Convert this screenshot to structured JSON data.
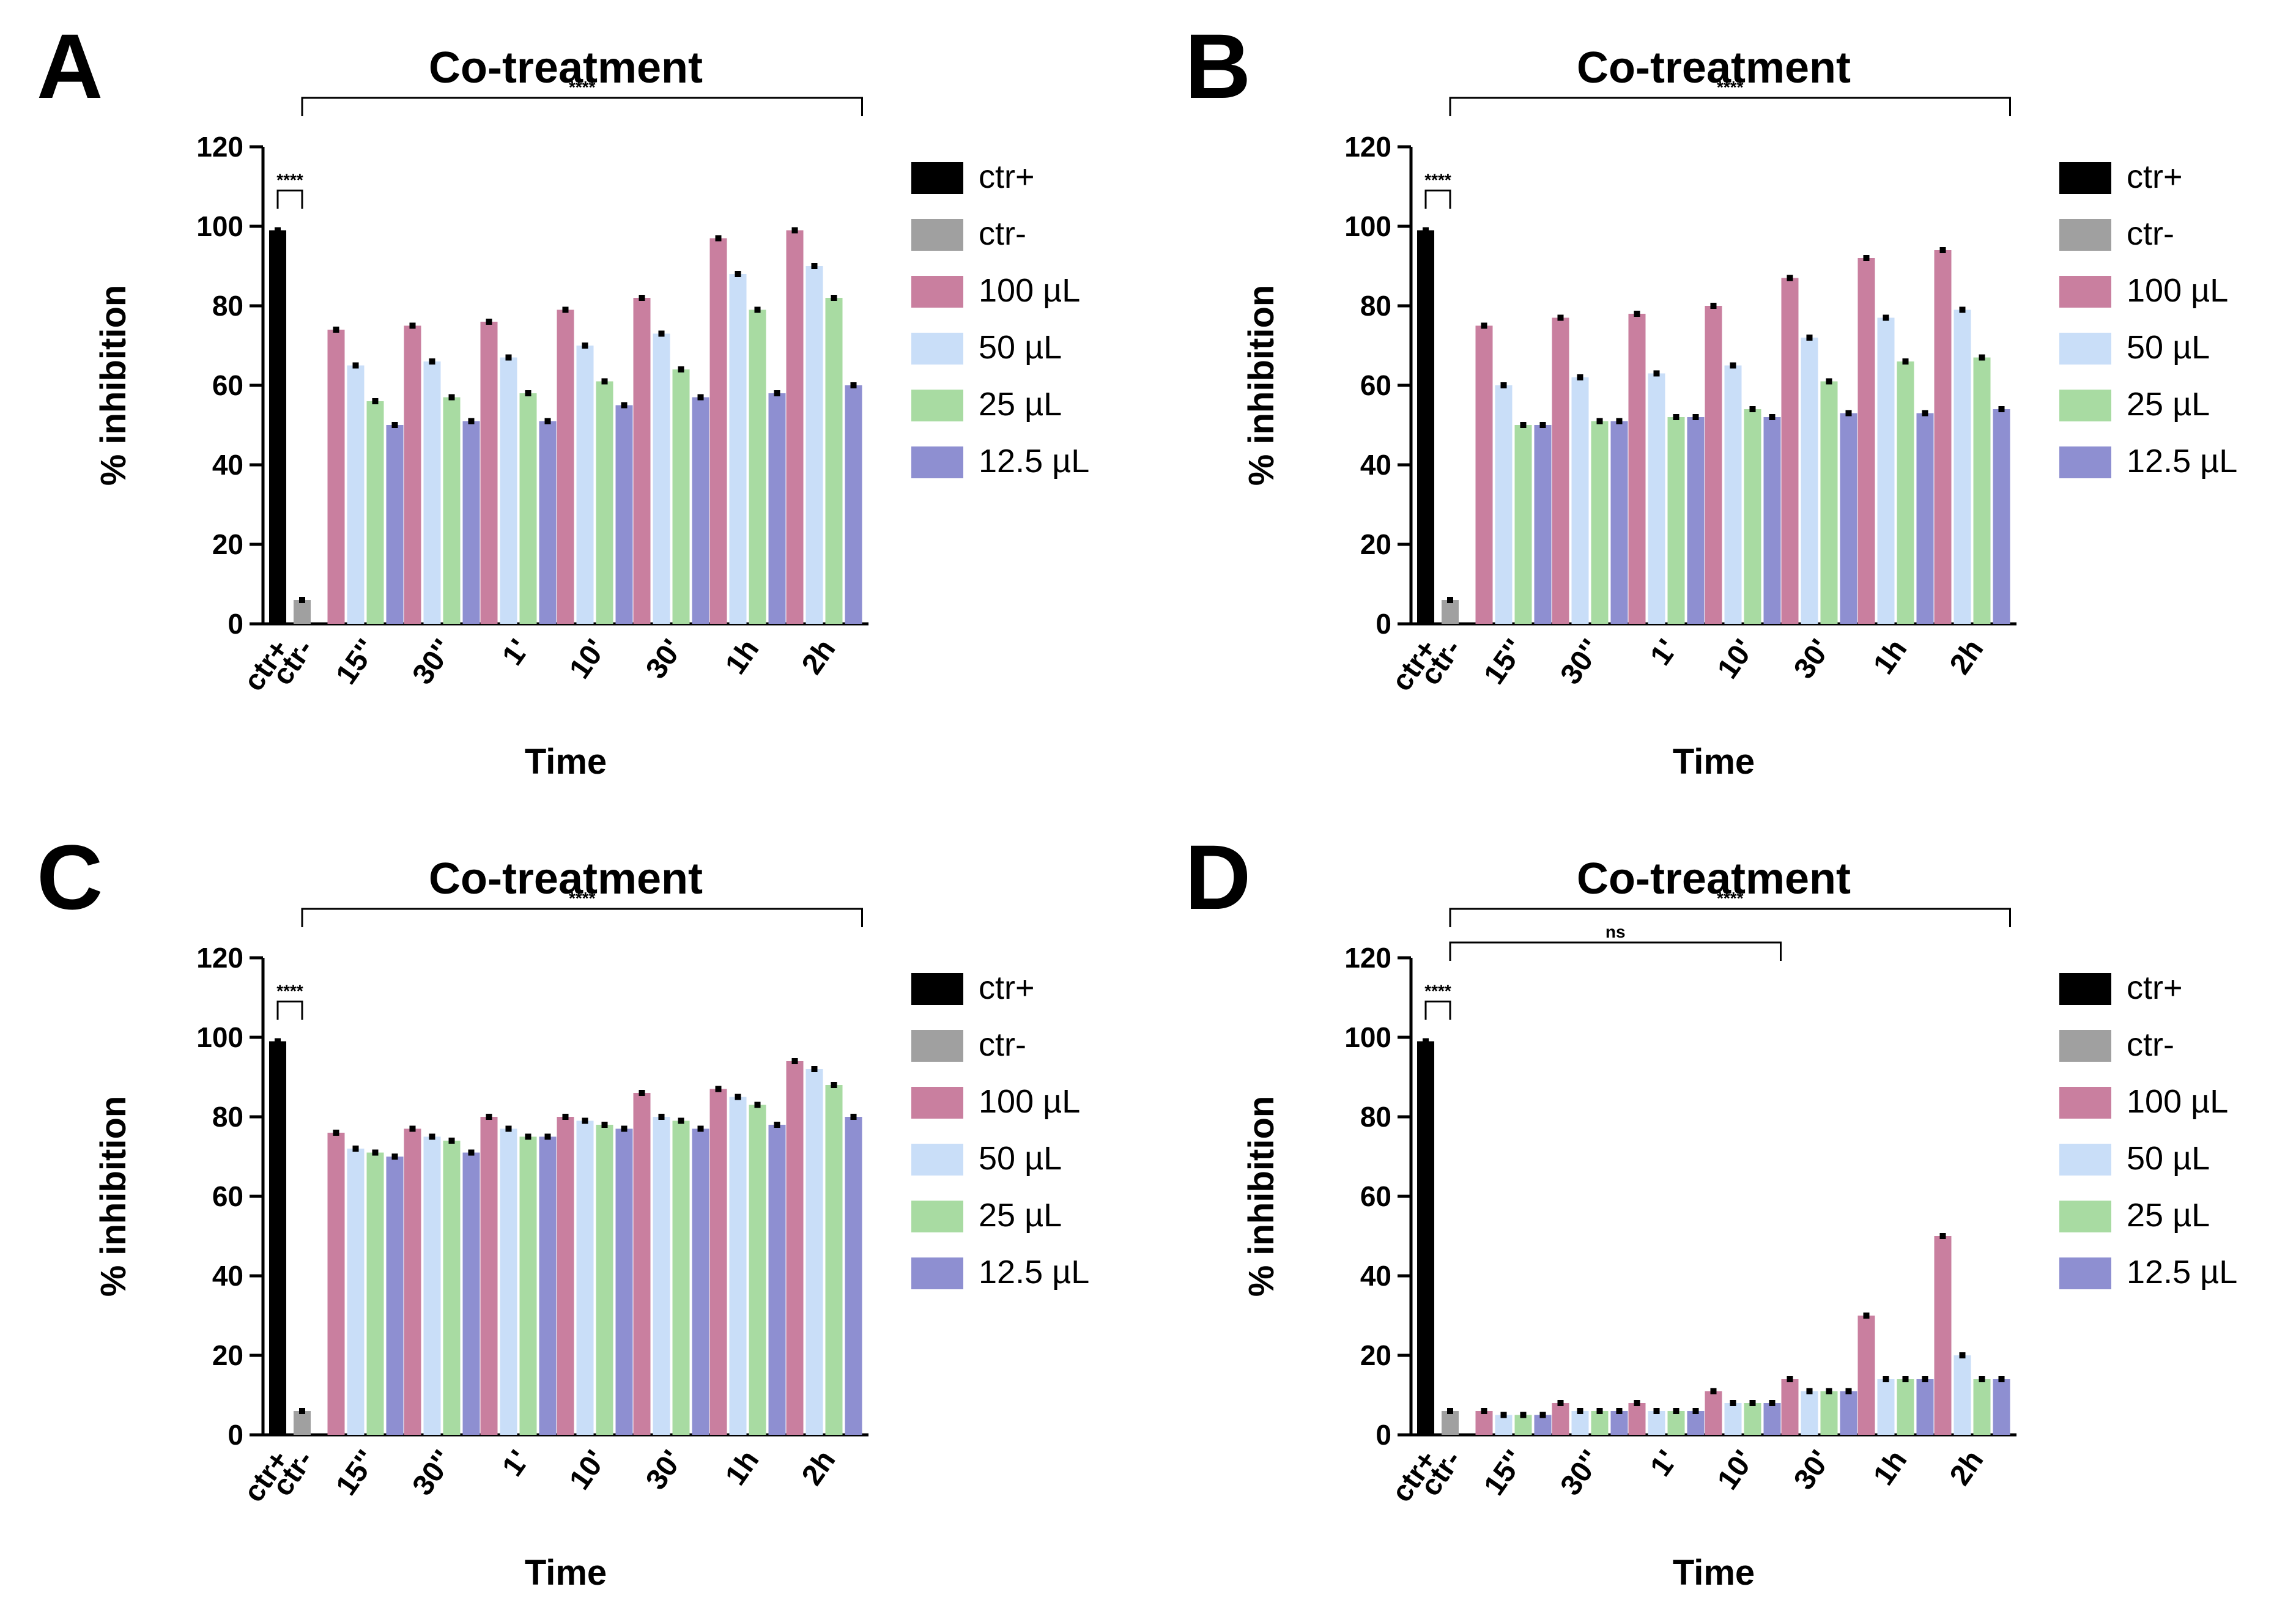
{
  "legend_colors": {
    "ctr+": "#000000",
    "ctr-": "#a0a0a0",
    "100 µL": "#c97f9f",
    "50 µL": "#c9def8",
    "25 µL": "#a8dba2",
    "12.5 µL": "#8e8fd1"
  },
  "chart_data": [
    {
      "panel_letter": "A",
      "type": "bar",
      "title": "Co-treatment",
      "xlabel": "Time",
      "ylabel": "% inhibition",
      "ylim": [
        0,
        120
      ],
      "yticks": [
        "0",
        "20",
        "40",
        "60",
        "80",
        "100",
        "120"
      ],
      "controls": [
        {
          "name": "ctr+",
          "value": 99
        },
        {
          "name": "ctr-",
          "value": 6
        }
      ],
      "categories": [
        "15''",
        "30''",
        "1'",
        "10'",
        "30'",
        "1h",
        "2h"
      ],
      "series": [
        {
          "name": "100 µL",
          "values": [
            74,
            75,
            76,
            79,
            82,
            97,
            99
          ]
        },
        {
          "name": "50 µL",
          "values": [
            65,
            66,
            67,
            70,
            73,
            88,
            90
          ]
        },
        {
          "name": "25 µL",
          "values": [
            56,
            57,
            58,
            61,
            64,
            79,
            82
          ]
        },
        {
          "name": "12.5 µL",
          "values": [
            50,
            51,
            51,
            55,
            57,
            58,
            60
          ]
        }
      ],
      "brackets": [
        {
          "label": "****",
          "from": "ctr+",
          "to": "ctr-"
        },
        {
          "label": "****",
          "from": "ctr-",
          "to": "2h"
        }
      ]
    },
    {
      "panel_letter": "B",
      "type": "bar",
      "title": "Co-treatment",
      "xlabel": "Time",
      "ylabel": "% inhibition",
      "ylim": [
        0,
        120
      ],
      "yticks": [
        "0",
        "20",
        "40",
        "60",
        "80",
        "100",
        "120"
      ],
      "controls": [
        {
          "name": "ctr+",
          "value": 99
        },
        {
          "name": "ctr-",
          "value": 6
        }
      ],
      "categories": [
        "15''",
        "30''",
        "1'",
        "10'",
        "30'",
        "1h",
        "2h"
      ],
      "series": [
        {
          "name": "100 µL",
          "values": [
            75,
            77,
            78,
            80,
            87,
            92,
            94
          ]
        },
        {
          "name": "50 µL",
          "values": [
            60,
            62,
            63,
            65,
            72,
            77,
            79
          ]
        },
        {
          "name": "25 µL",
          "values": [
            50,
            51,
            52,
            54,
            61,
            66,
            67
          ]
        },
        {
          "name": "12.5 µL",
          "values": [
            50,
            51,
            52,
            52,
            53,
            53,
            54
          ]
        }
      ],
      "brackets": [
        {
          "label": "****",
          "from": "ctr+",
          "to": "ctr-"
        },
        {
          "label": "****",
          "from": "ctr-",
          "to": "2h"
        }
      ]
    },
    {
      "panel_letter": "C",
      "type": "bar",
      "title": "Co-treatment",
      "xlabel": "Time",
      "ylabel": "% inhibition",
      "ylim": [
        0,
        120
      ],
      "yticks": [
        "0",
        "20",
        "40",
        "60",
        "80",
        "100",
        "120"
      ],
      "controls": [
        {
          "name": "ctr+",
          "value": 99
        },
        {
          "name": "ctr-",
          "value": 6
        }
      ],
      "categories": [
        "15''",
        "30''",
        "1'",
        "10'",
        "30'",
        "1h",
        "2h"
      ],
      "series": [
        {
          "name": "100 µL",
          "values": [
            76,
            77,
            80,
            80,
            86,
            87,
            94
          ]
        },
        {
          "name": "50 µL",
          "values": [
            72,
            75,
            77,
            79,
            80,
            85,
            92
          ]
        },
        {
          "name": "25 µL",
          "values": [
            71,
            74,
            75,
            78,
            79,
            83,
            88
          ]
        },
        {
          "name": "12.5 µL",
          "values": [
            70,
            71,
            75,
            77,
            77,
            78,
            80
          ]
        }
      ],
      "brackets": [
        {
          "label": "****",
          "from": "ctr+",
          "to": "ctr-"
        },
        {
          "label": "****",
          "from": "ctr-",
          "to": "2h"
        }
      ]
    },
    {
      "panel_letter": "D",
      "type": "bar",
      "title": "Co-treatment",
      "xlabel": "Time",
      "ylabel": "% inhibition",
      "ylim": [
        0,
        120
      ],
      "yticks": [
        "0",
        "20",
        "40",
        "60",
        "80",
        "100",
        "120"
      ],
      "controls": [
        {
          "name": "ctr+",
          "value": 99
        },
        {
          "name": "ctr-",
          "value": 6
        }
      ],
      "categories": [
        "15''",
        "30''",
        "1'",
        "10'",
        "30'",
        "1h",
        "2h"
      ],
      "series": [
        {
          "name": "100 µL",
          "values": [
            6,
            8,
            8,
            11,
            14,
            30,
            50
          ]
        },
        {
          "name": "50 µL",
          "values": [
            5,
            6,
            6,
            8,
            11,
            14,
            20
          ]
        },
        {
          "name": "25 µL",
          "values": [
            5,
            6,
            6,
            8,
            11,
            14,
            14
          ]
        },
        {
          "name": "12.5 µL",
          "values": [
            5,
            6,
            6,
            8,
            11,
            14,
            14
          ]
        }
      ],
      "brackets": [
        {
          "label": "****",
          "from": "ctr+",
          "to": "ctr-"
        },
        {
          "label": "****",
          "from": "ctr-",
          "to": "2h"
        },
        {
          "label": "ns",
          "from": "ctr-",
          "to": "10'"
        }
      ]
    }
  ]
}
